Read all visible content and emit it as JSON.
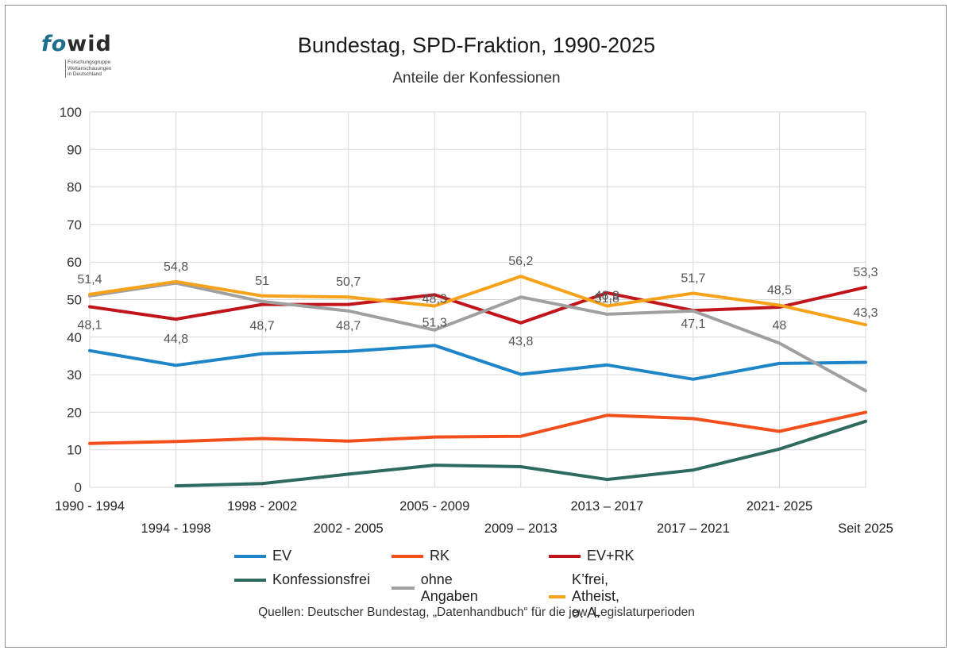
{
  "logo": {
    "word_fo": "fo",
    "word_wid": "wid",
    "sub_line1": "Forschungsgruppe",
    "sub_line2": "Weltanschauungen",
    "sub_line3": "in Deutschland"
  },
  "chart_data": {
    "type": "line",
    "title": "Bundestag, SPD-Fraktion, 1990-2025",
    "subtitle": "Anteile der Konfessionen",
    "categories": [
      "1990 - 1994",
      "1994 - 1998",
      "1998 - 2002",
      "2002 - 2005",
      "2005 - 2009",
      "2009 – 2013",
      "2013 – 2017",
      "2017 – 2021",
      "2021- 2025",
      "Seit 2025"
    ],
    "ylim": [
      0,
      100
    ],
    "yticks": [
      0,
      10,
      20,
      30,
      40,
      50,
      60,
      70,
      80,
      90,
      100
    ],
    "grid": true,
    "legend_position": "bottom",
    "series": [
      {
        "name": "EV",
        "color": "#1e86c8",
        "values": [
          36.4,
          32.5,
          35.6,
          36.2,
          37.8,
          30.1,
          32.6,
          28.8,
          33.0,
          33.3
        ]
      },
      {
        "name": "RK",
        "color": "#f24f1c",
        "values": [
          11.7,
          12.2,
          13.0,
          12.3,
          13.4,
          13.6,
          19.2,
          18.3,
          14.9,
          20.0
        ]
      },
      {
        "name": "EV+RK",
        "color": "#c0151b",
        "values": [
          48.1,
          44.8,
          48.7,
          48.7,
          51.3,
          43.8,
          51.8,
          47.1,
          48,
          53.3
        ],
        "labels": [
          "48,1",
          "44,8",
          "48,7",
          "48,7",
          "51,3",
          "43,8",
          "51,8",
          "47,1",
          "48",
          "53,3"
        ]
      },
      {
        "name": "Konfessionsfrei",
        "color": "#2e6a5f",
        "values": [
          null,
          0.4,
          1.0,
          3.5,
          5.9,
          5.5,
          2.1,
          4.6,
          10.2,
          17.6
        ]
      },
      {
        "name": "ohne Angaben",
        "color": "#a0a0a0",
        "values": [
          51.0,
          54.4,
          49.5,
          47.0,
          41.9,
          50.7,
          46.1,
          47.0,
          38.4,
          25.7
        ]
      },
      {
        "name": "K’frei, Atheist, o. A.",
        "color": "#f7a21b",
        "values": [
          51.4,
          54.8,
          51,
          50.7,
          48.3,
          56.2,
          48.3,
          51.7,
          48.5,
          43.3
        ],
        "labels": [
          "51,4",
          "54,8",
          "51",
          "50,7",
          "48,3",
          "56,2",
          "48,3",
          "51,7",
          "48,5",
          "43,3"
        ]
      }
    ]
  },
  "source": "Quellen: Deutscher Bundestag, „Datenhandbuch“ für die jew. Legislaturperioden"
}
